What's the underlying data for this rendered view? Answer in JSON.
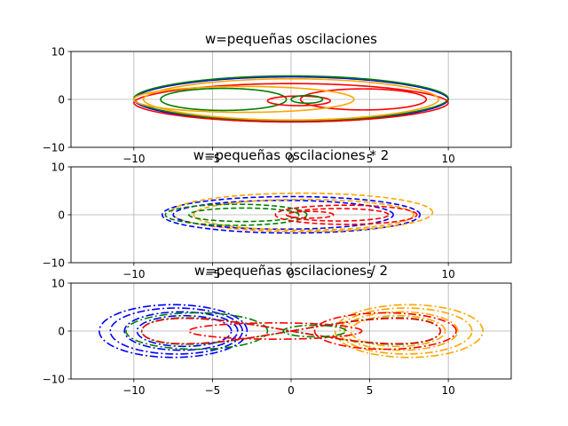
{
  "chart_data": [
    {
      "type": "line",
      "title": "w=pequeñas oscilaciones",
      "xlabel": "",
      "ylabel": "",
      "xlim": [
        -14,
        14
      ],
      "ylim": [
        -10,
        10
      ],
      "xticks": [
        -10,
        -5,
        0,
        5,
        10
      ],
      "yticks": [
        -10,
        0,
        10
      ],
      "grid": true,
      "linestyle": "solid",
      "series": [
        {
          "color": "#0000ff",
          "kind": "outer",
          "a": 10,
          "b": 4.7,
          "cx": 0,
          "cy": 0
        },
        {
          "color": "#008000",
          "kind": "outer",
          "a": 10,
          "b": 4.7,
          "cx": 0,
          "cy": 0.2
        },
        {
          "color": "#ff0000",
          "kind": "outer",
          "a": 10,
          "b": 4.0,
          "cx": 0,
          "cy": -0.7
        },
        {
          "color": "#ffa500",
          "kind": "outer",
          "a": 9.4,
          "b": 4.3,
          "cx": 0,
          "cy": 0
        },
        {
          "color": "#008000",
          "kind": "ellipse",
          "a": 4.0,
          "b": 2.3,
          "cx": -4.3,
          "cy": 0
        },
        {
          "color": "#ff0000",
          "kind": "ellipse",
          "a": 4.0,
          "b": 2.2,
          "cx": 4.6,
          "cy": 0
        },
        {
          "color": "#ffa500",
          "kind": "ellipse",
          "a": 7.0,
          "b": 2.7,
          "cx": -3.0,
          "cy": 0
        },
        {
          "color": "#ff0000",
          "kind": "ellipse",
          "a": 2.0,
          "b": 1.0,
          "cx": 0.5,
          "cy": -0.3
        },
        {
          "color": "#008000",
          "kind": "ellipse",
          "a": 1.0,
          "b": 0.8,
          "cx": 1.0,
          "cy": 0
        }
      ]
    },
    {
      "type": "line",
      "title": "w=pequeñas oscilaciones * 2",
      "xlabel": "",
      "ylabel": "",
      "xlim": [
        -14,
        14
      ],
      "ylim": [
        -10,
        10
      ],
      "xticks": [
        -10,
        -5,
        0,
        5,
        10
      ],
      "yticks": [
        -10,
        0,
        10
      ],
      "grid": true,
      "linestyle": "dashed",
      "series": [
        {
          "color": "#0000ff",
          "kind": "ellipse",
          "a": 8.2,
          "b": 3.8,
          "cx": 0,
          "cy": 0
        },
        {
          "color": "#ffa500",
          "kind": "ellipse",
          "a": 8.3,
          "b": 4.0,
          "cx": 0.7,
          "cy": 0.5
        },
        {
          "color": "#0000ff",
          "kind": "ellipse",
          "a": 7.0,
          "b": 3.0,
          "cx": -0.5,
          "cy": 0
        },
        {
          "color": "#ffa500",
          "kind": "ellipse",
          "a": 7.0,
          "b": 3.2,
          "cx": 0.8,
          "cy": 0
        },
        {
          "color": "#008000",
          "kind": "ellipse",
          "a": 4.5,
          "b": 2.2,
          "cx": -3.5,
          "cy": 0
        },
        {
          "color": "#008000",
          "kind": "ellipse",
          "a": 3.5,
          "b": 1.4,
          "cx": -3.0,
          "cy": 0
        },
        {
          "color": "#ff0000",
          "kind": "ellipse",
          "a": 4.5,
          "b": 2.0,
          "cx": 3.5,
          "cy": 0
        },
        {
          "color": "#ff0000",
          "kind": "ellipse",
          "a": 3.2,
          "b": 1.3,
          "cx": 3.0,
          "cy": 0
        },
        {
          "color": "#ff0000",
          "kind": "ellipse",
          "a": 1.5,
          "b": 0.7,
          "cx": 1.2,
          "cy": 0
        }
      ]
    },
    {
      "type": "line",
      "title": "w=pequeñas oscilaciones / 2",
      "xlabel": "",
      "ylabel": "",
      "xlim": [
        -14,
        14
      ],
      "ylim": [
        -10,
        10
      ],
      "xticks": [
        -10,
        -5,
        0,
        5,
        10
      ],
      "yticks": [
        -10,
        0,
        10
      ],
      "grid": true,
      "linestyle": "dashdot",
      "series": [
        {
          "color": "#0000ff",
          "kind": "ellipse",
          "a": 4.7,
          "b": 5.5,
          "cx": -7.5,
          "cy": 0
        },
        {
          "color": "#0000ff",
          "kind": "ellipse",
          "a": 4.2,
          "b": 4.8,
          "cx": -7.3,
          "cy": 0
        },
        {
          "color": "#0000ff",
          "kind": "ellipse",
          "a": 3.6,
          "b": 4.0,
          "cx": -7.0,
          "cy": 0
        },
        {
          "color": "#0000ff",
          "kind": "ellipse",
          "a": 3.0,
          "b": 3.2,
          "cx": -6.8,
          "cy": 0
        },
        {
          "color": "#ffa500",
          "kind": "ellipse",
          "a": 4.7,
          "b": 5.5,
          "cx": 7.5,
          "cy": 0
        },
        {
          "color": "#ffa500",
          "kind": "ellipse",
          "a": 4.2,
          "b": 4.8,
          "cx": 7.3,
          "cy": 0
        },
        {
          "color": "#ffa500",
          "kind": "ellipse",
          "a": 3.6,
          "b": 4.0,
          "cx": 7.0,
          "cy": 0
        },
        {
          "color": "#ffa500",
          "kind": "ellipse",
          "a": 3.0,
          "b": 3.2,
          "cx": 6.8,
          "cy": 0
        },
        {
          "color": "#008000",
          "kind": "ellipse",
          "a": 4.5,
          "b": 3.8,
          "cx": -6.0,
          "cy": 0
        },
        {
          "color": "#008000",
          "kind": "figure8",
          "a": 9.5,
          "b": 5.5,
          "cx": 0,
          "cy": 0
        },
        {
          "color": "#ff0000",
          "kind": "ellipse",
          "a": 4.5,
          "b": 3.8,
          "cx": 6.0,
          "cy": 0
        },
        {
          "color": "#ff0000",
          "kind": "figure8",
          "a": 9.5,
          "b": 5.3,
          "cx": 0,
          "cy": 0
        },
        {
          "color": "#ff0000",
          "kind": "ellipse",
          "a": 5.5,
          "b": 1.7,
          "cx": -1.0,
          "cy": 0
        },
        {
          "color": "#008000",
          "kind": "ellipse",
          "a": 2.0,
          "b": 1.2,
          "cx": 1.5,
          "cy": 0
        }
      ]
    }
  ]
}
